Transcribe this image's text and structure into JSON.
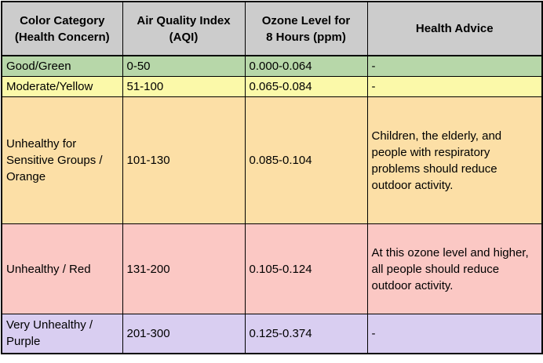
{
  "table": {
    "border_color": "#000000",
    "header": {
      "bg": "#cccccc",
      "columns": [
        "Color Category\n(Health Concern)",
        "Air Quality Index\n(AQI)",
        "Ozone Level for\n8 Hours (ppm)",
        "Health Advice"
      ]
    },
    "rows": [
      {
        "category": "Good/Green",
        "aqi": "0-50",
        "ozone": "0.000-0.064",
        "advice": "-",
        "bg": "#b7d7a9"
      },
      {
        "category": "Moderate/Yellow",
        "aqi": "51-100",
        "ozone": "0.065-0.084",
        "advice": "-",
        "bg": "#fbf9a9"
      },
      {
        "category": "Unhealthy for Sensitive Groups / Orange",
        "aqi": "101-130",
        "ozone": "0.085-0.104",
        "advice": "Children, the elderly, and people with respiratory problems should reduce outdoor activity.",
        "bg": "#fcdfa6"
      },
      {
        "category": "Unhealthy / Red",
        "aqi": "131-200",
        "ozone": "0.105-0.124",
        "advice": "At this ozone level and higher, all people should reduce outdoor activity.",
        "bg": "#fbc8c4"
      },
      {
        "category": "Very Unhealthy / Purple",
        "aqi": "201-300",
        "ozone": "0.125-0.374",
        "advice": "-",
        "bg": "#d9cef1"
      }
    ]
  }
}
